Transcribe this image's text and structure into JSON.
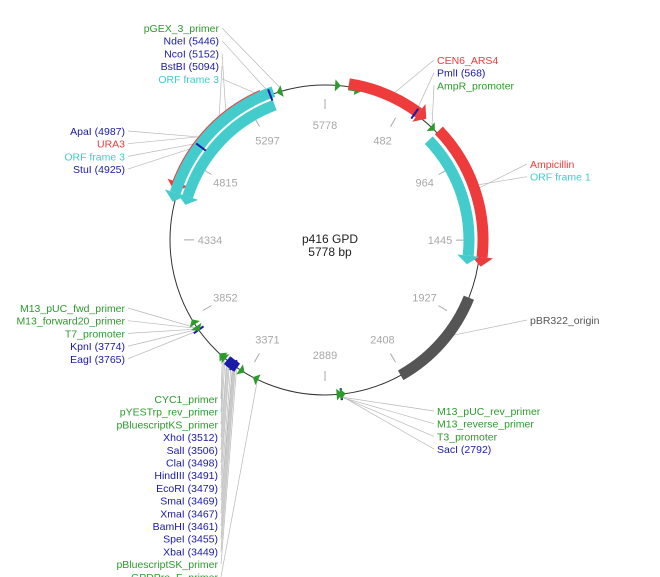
{
  "plasmid": {
    "name": "p416 GPD",
    "size_label": "5778 bp",
    "length": 5778
  },
  "colors": {
    "backbone": "#333333",
    "enzyme": "#1a1aa8",
    "primer": "#2c9a2c",
    "orf": "#44cccc",
    "gene": "#ee3b3b",
    "origin": "#555555",
    "leader": "#b8b8b8",
    "tick": "#a8a8a8"
  },
  "ticks": [
    {
      "pos": 5778,
      "label": "5778"
    },
    {
      "pos": 482,
      "label": "482"
    },
    {
      "pos": 964,
      "label": "964"
    },
    {
      "pos": 1445,
      "label": "1445"
    },
    {
      "pos": 1927,
      "label": "1927"
    },
    {
      "pos": 2408,
      "label": "2408"
    },
    {
      "pos": 2889,
      "label": "2889"
    },
    {
      "pos": 3371,
      "label": "3371"
    },
    {
      "pos": 3852,
      "label": "3852"
    },
    {
      "pos": 4334,
      "label": "4334"
    },
    {
      "pos": 4815,
      "label": "4815"
    },
    {
      "pos": 5297,
      "label": "5297"
    }
  ],
  "features": [
    {
      "name": "AmpR_promoter",
      "kind": "primer",
      "start": 140,
      "end": 235,
      "dir": 1
    },
    {
      "name": "CEN6_ARS4",
      "kind": "gene",
      "start": 140,
      "end": 640,
      "dir": 1
    },
    {
      "name": "Ampicillin",
      "kind": "gene",
      "start": 740,
      "end": 1600,
      "dir": 1
    },
    {
      "name": "ORF frame 1",
      "kind": "orf",
      "start": 740,
      "end": 1600,
      "dir": 1
    },
    {
      "name": "pBR322_origin",
      "kind": "origin",
      "start": 1795,
      "end": 2420,
      "dir": 0
    },
    {
      "name": "URA3",
      "kind": "gene",
      "start": 4620,
      "end": 5400,
      "dir": -1
    },
    {
      "name": "ORF frame 3",
      "kind": "orf",
      "start": 4560,
      "end": 5450,
      "dir": -1
    },
    {
      "name": "ORF frame 3",
      "kind": "orf",
      "start": 4560,
      "end": 5470,
      "dir": -1
    }
  ],
  "left_labels": [
    {
      "text": "pGEX_3_primer",
      "kind": "primer",
      "pos": 5520
    },
    {
      "text": "NdeI (5446)",
      "kind": "enzyme",
      "pos": 5446
    },
    {
      "text": "NcoI (5152)",
      "kind": "enzyme",
      "pos": 5152
    },
    {
      "text": "BstBI (5094)",
      "kind": "enzyme",
      "pos": 5094
    },
    {
      "text": "ORF frame 3",
      "kind": "orf",
      "pos": 5400
    },
    {
      "text": "ApaI (4987)",
      "kind": "enzyme",
      "pos": 4987
    },
    {
      "text": "URA3",
      "kind": "gene",
      "pos": 5000
    },
    {
      "text": "ORF frame 3",
      "kind": "orf",
      "pos": 4950
    },
    {
      "text": "StuI (4925)",
      "kind": "enzyme",
      "pos": 4925
    },
    {
      "text": "M13_pUC_fwd_primer",
      "kind": "primer",
      "pos": 3790
    },
    {
      "text": "M13_forward20_primer",
      "kind": "primer",
      "pos": 3785
    },
    {
      "text": "T7_promoter",
      "kind": "primer",
      "pos": 3778
    },
    {
      "text": "KpnI (3774)",
      "kind": "enzyme",
      "pos": 3774
    },
    {
      "text": "EagI (3765)",
      "kind": "enzyme",
      "pos": 3765
    },
    {
      "text": "CYC1_primer",
      "kind": "primer",
      "pos": 3545
    },
    {
      "text": "pYESTrp_rev_primer",
      "kind": "primer",
      "pos": 3535
    },
    {
      "text": "pBluescriptKS_primer",
      "kind": "primer",
      "pos": 3525
    },
    {
      "text": "XhoI (3512)",
      "kind": "enzyme",
      "pos": 3512
    },
    {
      "text": "SalI (3506)",
      "kind": "enzyme",
      "pos": 3506
    },
    {
      "text": "ClaI (3498)",
      "kind": "enzyme",
      "pos": 3498
    },
    {
      "text": "HindIII (3491)",
      "kind": "enzyme",
      "pos": 3491
    },
    {
      "text": "EcoRI (3479)",
      "kind": "enzyme",
      "pos": 3479
    },
    {
      "text": "SmaI (3469)",
      "kind": "enzyme",
      "pos": 3469
    },
    {
      "text": "XmaI (3467)",
      "kind": "enzyme",
      "pos": 3467
    },
    {
      "text": "BamHI (3461)",
      "kind": "enzyme",
      "pos": 3461
    },
    {
      "text": "SpeI (3455)",
      "kind": "enzyme",
      "pos": 3455
    },
    {
      "text": "XbaI (3449)",
      "kind": "enzyme",
      "pos": 3449
    },
    {
      "text": "pBluescriptSK_primer",
      "kind": "primer",
      "pos": 3440
    },
    {
      "text": "GPDPro_F_primer",
      "kind": "primer",
      "pos": 3300
    }
  ],
  "right_labels": [
    {
      "text": "CEN6_ARS4",
      "kind": "gene",
      "pos": 390
    },
    {
      "text": "PmlI (568)",
      "kind": "enzyme",
      "pos": 568
    },
    {
      "text": "AmpR_promoter",
      "kind": "primer",
      "pos": 690
    },
    {
      "text": "Ampicillin",
      "kind": "gene",
      "pos": 1150
    },
    {
      "text": "ORF frame 1",
      "kind": "orf",
      "pos": 1120
    },
    {
      "text": "pBR322_origin",
      "kind": "origin",
      "pos": 2050
    },
    {
      "text": "M13_pUC_rev_primer",
      "kind": "primer",
      "pos": 2815
    },
    {
      "text": "M13_reverse_primer",
      "kind": "primer",
      "pos": 2810
    },
    {
      "text": "T3_promoter",
      "kind": "primer",
      "pos": 2800
    },
    {
      "text": "SacI (2792)",
      "kind": "enzyme",
      "pos": 2792
    }
  ],
  "arrowheads": [
    {
      "kind": "primer",
      "pos": 60,
      "dir": 1
    },
    {
      "kind": "primer",
      "pos": 690,
      "dir": 1
    },
    {
      "kind": "primer",
      "pos": 2800,
      "dir": -1
    },
    {
      "kind": "primer",
      "pos": 2820,
      "dir": -1
    },
    {
      "kind": "primer",
      "pos": 3300,
      "dir": 1
    },
    {
      "kind": "primer",
      "pos": 3425,
      "dir": -1
    },
    {
      "kind": "primer",
      "pos": 3530,
      "dir": 1
    },
    {
      "kind": "primer",
      "pos": 3545,
      "dir": 1
    },
    {
      "kind": "primer",
      "pos": 3790,
      "dir": -1
    },
    {
      "kind": "primer",
      "pos": 3805,
      "dir": 1
    },
    {
      "kind": "primer",
      "pos": 5520,
      "dir": -1
    }
  ],
  "site_marks": [
    {
      "kind": "enzyme",
      "pos": 568
    },
    {
      "kind": "enzyme",
      "pos": 2792
    },
    {
      "kind": "enzyme",
      "pos": 3470
    },
    {
      "kind": "enzyme",
      "pos": 3765
    },
    {
      "kind": "enzyme",
      "pos": 4925
    },
    {
      "kind": "enzyme",
      "pos": 5446
    }
  ]
}
